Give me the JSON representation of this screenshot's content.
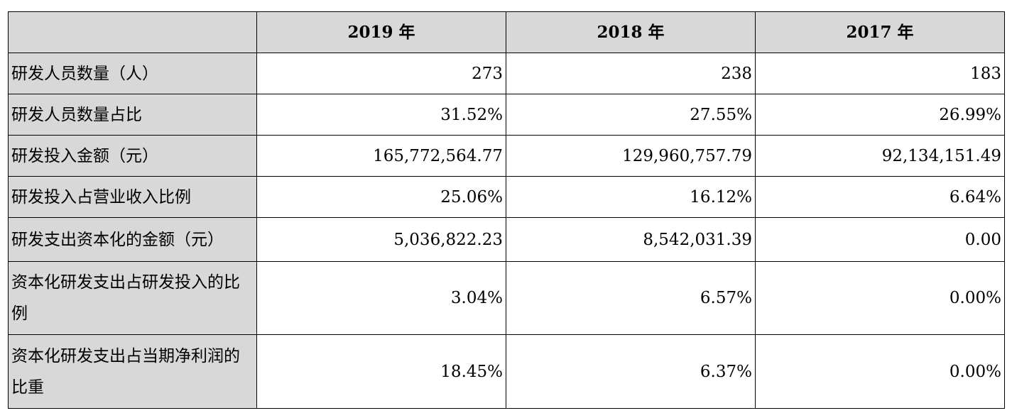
{
  "table": {
    "headers": [
      "",
      "2019 年",
      "2018 年",
      "2017 年"
    ],
    "rows": [
      {
        "label": "研发人员数量（人）",
        "values": [
          "273",
          "238",
          "183"
        ]
      },
      {
        "label": "研发人员数量占比",
        "values": [
          "31.52%",
          "27.55%",
          "26.99%"
        ]
      },
      {
        "label": "研发投入金额（元）",
        "values": [
          "165,772,564.77",
          "129,960,757.79",
          "92,134,151.49"
        ]
      },
      {
        "label": "研发投入占营业收入比例",
        "values": [
          "25.06%",
          "16.12%",
          "6.64%"
        ]
      },
      {
        "label": "研发支出资本化的金额（元）",
        "values": [
          "5,036,822.23",
          "8,542,031.39",
          "0.00"
        ]
      },
      {
        "label": "资本化研发支出占研发投入的比例",
        "values": [
          "3.04%",
          "6.57%",
          "0.00%"
        ]
      },
      {
        "label": "资本化研发支出占当期净利润的比重",
        "values": [
          "18.45%",
          "6.37%",
          "0.00%"
        ]
      }
    ]
  }
}
